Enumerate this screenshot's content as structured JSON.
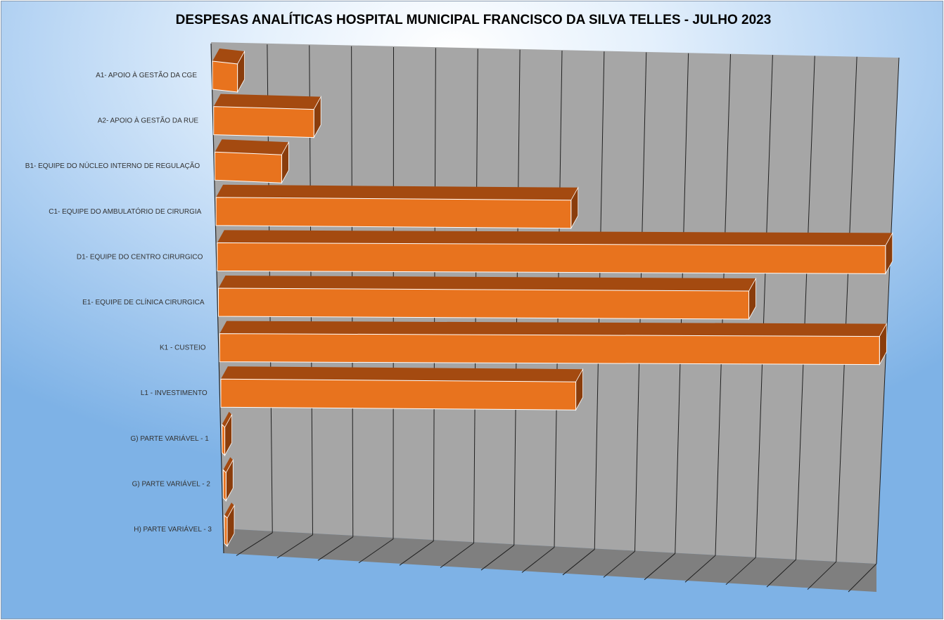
{
  "chart_data": {
    "type": "bar",
    "orientation": "horizontal",
    "title": "DESPESAS ANALÍTICAS HOSPITAL MUNICIPAL FRANCISCO DA SILVA TELLES - JULHO 2023",
    "categories": [
      "A1- APOIO À GESTÃO DA CGE",
      "A2- APOIO À GESTÃO DA RUE",
      "B1- EQUIPE DO NÚCLEO INTERNO DE REGULAÇÃO",
      "C1- EQUIPE DO AMBULATÓRIO DE CIRURGIA",
      "D1- EQUIPE DO CENTRO CIRURGICO",
      "E1- EQUIPE DE CLÍNICA CIRURGICA",
      "K1 - CUSTEIO",
      "L1 - INVESTIMENTO",
      "G) PARTE VARIÁVEL - 1",
      "G) PARTE VARIÁVEL - 2",
      "H) PARTE VARIÁVEL - 3"
    ],
    "values": [
      0.6,
      2.4,
      1.6,
      8.5,
      16.0,
      12.7,
      15.8,
      8.5,
      0,
      0,
      0
    ],
    "xlim": [
      0,
      16
    ],
    "show_value_axis_labels": false,
    "grid": true,
    "legend": "none",
    "style": "3d",
    "colors": {
      "bar_front": "#e8731e",
      "bar_top": "#a44a10",
      "bar_side": "#8a3d0c",
      "wall": "#a6a6a6",
      "floor": "#7f7f7f",
      "gridline": "#1f1f1f"
    }
  }
}
